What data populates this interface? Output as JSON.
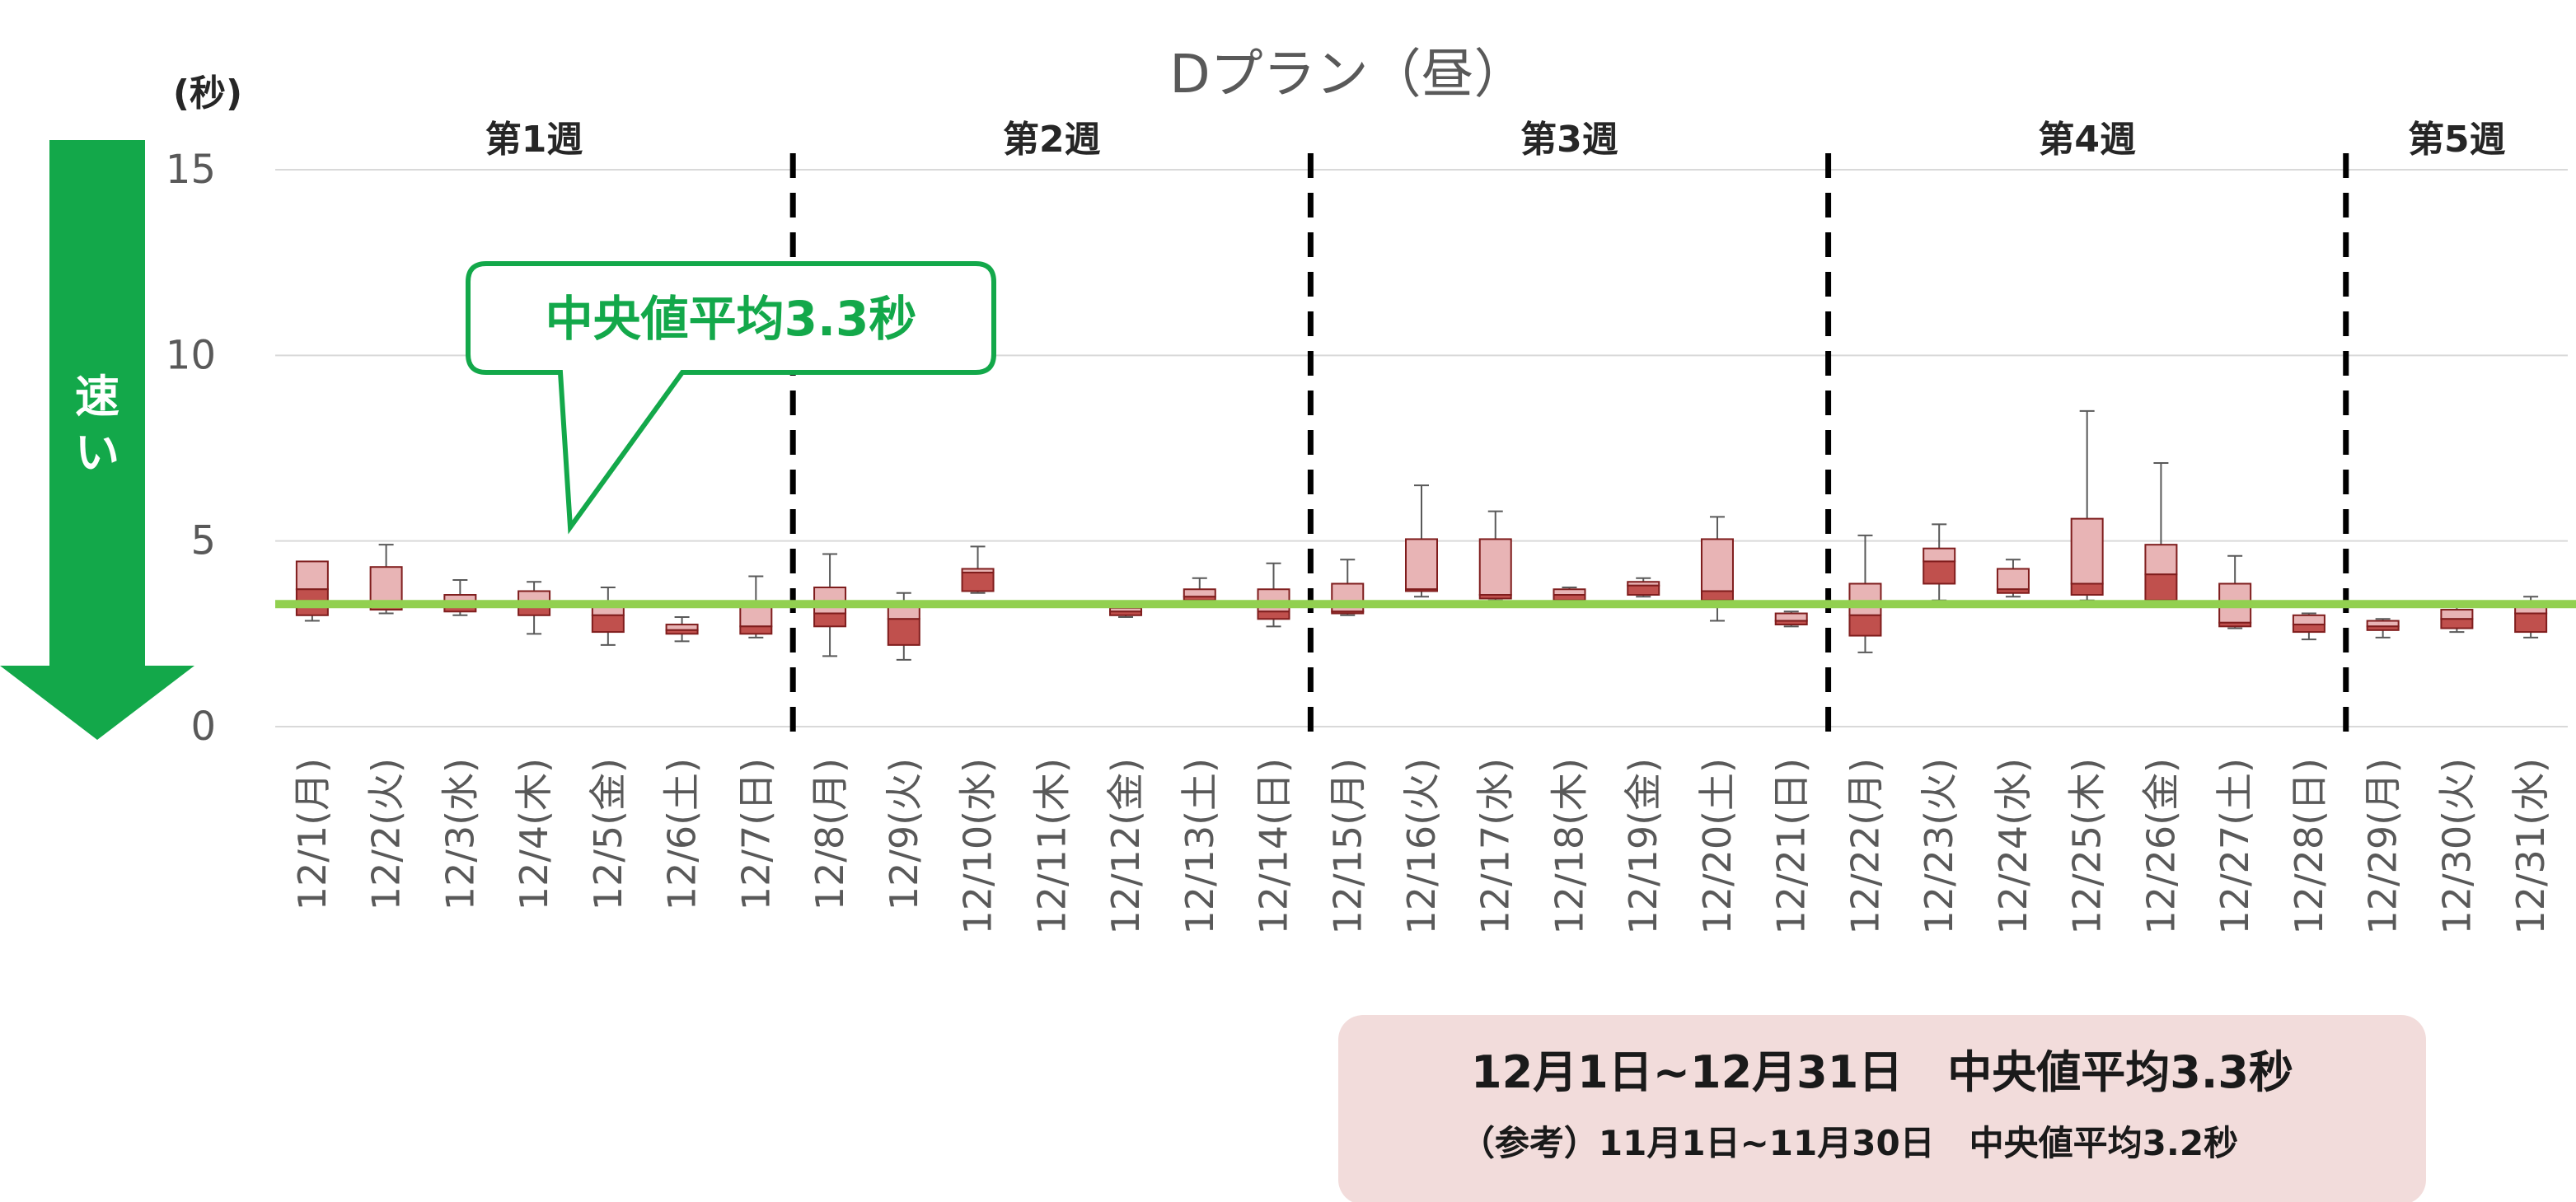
{
  "chart_data": {
    "type": "box",
    "title": "Dプラン（昼）",
    "ylabel": "(秒)",
    "ylim": [
      0,
      15
    ],
    "yticks": [
      0,
      5,
      10,
      15
    ],
    "reference_line": {
      "value": 3.3,
      "color": "#92d050"
    },
    "categories": [
      "12/1(月)",
      "12/2(火)",
      "12/3(水)",
      "12/4(木)",
      "12/5(金)",
      "12/6(土)",
      "12/7(日)",
      "12/8(月)",
      "12/9(火)",
      "12/10(水)",
      "12/11(木)",
      "12/12(金)",
      "12/13(土)",
      "12/14(日)",
      "12/15(月)",
      "12/16(火)",
      "12/17(水)",
      "12/18(木)",
      "12/19(金)",
      "12/20(土)",
      "12/21(日)",
      "12/22(月)",
      "12/23(火)",
      "12/24(水)",
      "12/25(木)",
      "12/26(金)",
      "12/27(土)",
      "12/28(日)",
      "12/29(月)",
      "12/30(火)",
      "12/31(水)"
    ],
    "boxes": [
      {
        "min": 2.85,
        "q1": 3.0,
        "median": 3.7,
        "q3": 4.45,
        "max": 4.45
      },
      {
        "min": 3.05,
        "q1": 3.15,
        "median": 3.3,
        "q3": 4.3,
        "max": 4.9
      },
      {
        "min": 3.0,
        "q1": 3.1,
        "median": 3.3,
        "q3": 3.55,
        "max": 3.95
      },
      {
        "min": 2.5,
        "q1": 3.0,
        "median": 3.3,
        "q3": 3.65,
        "max": 3.9
      },
      {
        "min": 2.2,
        "q1": 2.55,
        "median": 3.0,
        "q3": 3.3,
        "max": 3.75
      },
      {
        "min": 2.3,
        "q1": 2.5,
        "median": 2.6,
        "q3": 2.75,
        "max": 2.95
      },
      {
        "min": 2.4,
        "q1": 2.5,
        "median": 2.7,
        "q3": 3.3,
        "max": 4.05
      },
      {
        "min": 1.9,
        "q1": 2.7,
        "median": 3.05,
        "q3": 3.75,
        "max": 4.65
      },
      {
        "min": 1.8,
        "q1": 2.2,
        "median": 2.9,
        "q3": 3.25,
        "max": 3.6
      },
      {
        "min": 3.6,
        "q1": 3.65,
        "median": 4.15,
        "q3": 4.25,
        "max": 4.85
      },
      null,
      {
        "min": 2.95,
        "q1": 3.0,
        "median": 3.1,
        "q3": 3.2,
        "max": 3.35
      },
      {
        "min": 3.3,
        "q1": 3.4,
        "median": 3.5,
        "q3": 3.7,
        "max": 4.0
      },
      {
        "min": 2.7,
        "q1": 2.9,
        "median": 3.1,
        "q3": 3.7,
        "max": 4.4
      },
      {
        "min": 3.0,
        "q1": 3.05,
        "median": 3.1,
        "q3": 3.85,
        "max": 4.5
      },
      {
        "min": 3.5,
        "q1": 3.65,
        "median": 3.7,
        "q3": 5.05,
        "max": 6.5
      },
      {
        "min": 3.4,
        "q1": 3.45,
        "median": 3.55,
        "q3": 5.05,
        "max": 5.8
      },
      {
        "min": 3.35,
        "q1": 3.4,
        "median": 3.55,
        "q3": 3.7,
        "max": 3.75
      },
      {
        "min": 3.5,
        "q1": 3.55,
        "median": 3.8,
        "q3": 3.9,
        "max": 4.0
      },
      {
        "min": 2.85,
        "q1": 3.4,
        "median": 3.65,
        "q3": 5.05,
        "max": 5.65
      },
      {
        "min": 2.7,
        "q1": 2.75,
        "median": 2.85,
        "q3": 3.05,
        "max": 3.1
      },
      {
        "min": 2.0,
        "q1": 2.45,
        "median": 3.0,
        "q3": 3.85,
        "max": 5.15
      },
      {
        "min": 3.4,
        "q1": 3.85,
        "median": 4.45,
        "q3": 4.8,
        "max": 5.45
      },
      {
        "min": 3.5,
        "q1": 3.6,
        "median": 3.7,
        "q3": 4.25,
        "max": 4.5
      },
      {
        "min": 3.4,
        "q1": 3.55,
        "median": 3.85,
        "q3": 5.6,
        "max": 8.5
      },
      {
        "min": 3.3,
        "q1": 3.4,
        "median": 4.1,
        "q3": 4.9,
        "max": 7.1
      },
      {
        "min": 2.65,
        "q1": 2.7,
        "median": 2.8,
        "q3": 3.85,
        "max": 4.6
      },
      {
        "min": 2.35,
        "q1": 2.55,
        "median": 2.75,
        "q3": 3.0,
        "max": 3.05
      },
      {
        "min": 2.4,
        "q1": 2.6,
        "median": 2.7,
        "q3": 2.85,
        "max": 2.9
      },
      {
        "min": 2.55,
        "q1": 2.65,
        "median": 2.9,
        "q3": 3.15,
        "max": 3.35
      },
      {
        "min": 2.4,
        "q1": 2.55,
        "median": 3.05,
        "q3": 3.3,
        "max": 3.5
      }
    ],
    "weeks": [
      {
        "label": "第1週",
        "from": 0,
        "to": 6
      },
      {
        "label": "第2週",
        "from": 7,
        "to": 13
      },
      {
        "label": "第3週",
        "from": 14,
        "to": 20
      },
      {
        "label": "第4週",
        "from": 21,
        "to": 27
      },
      {
        "label": "第5週",
        "from": 28,
        "to": 30
      }
    ],
    "colors": {
      "box_upper": "#e8b4b5",
      "box_lower": "#c0504d",
      "box_border": "#7f1d1d",
      "whisker": "#595959",
      "grid": "#d9d9d9"
    }
  },
  "arrow": {
    "label_line1": "速",
    "label_line2": "い",
    "color": "#13a84a"
  },
  "callout": {
    "text": "中央値平均3.3秒",
    "color": "#13a84a"
  },
  "summary": {
    "main": "12月1日~12月31日　中央値平均3.3秒",
    "reference": "（参考）11月1日~11月30日　中央値平均3.2秒",
    "background": "#f2dcdb"
  }
}
